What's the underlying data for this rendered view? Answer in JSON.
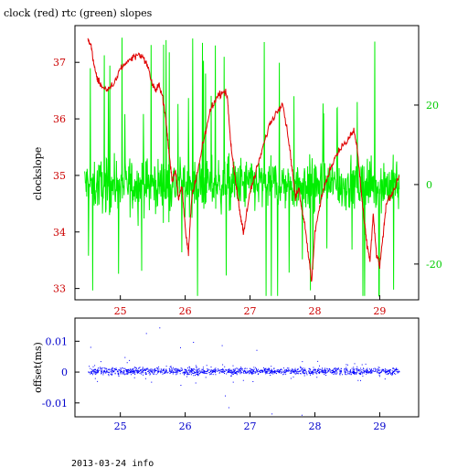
{
  "title": "clock (red) rtc (green) slopes",
  "footer": "2013-03-24 info",
  "colors": {
    "clock": "#e00000",
    "rtc": "#00ee00",
    "offset": "#0000ff",
    "axis": "#000000",
    "left_tick_top": "#cc0000",
    "right_tick_top": "#00cc00",
    "tick_bottom": "#0000cc",
    "x_tick_top": "#cc0000",
    "x_tick_bottom": "#0000cc"
  },
  "chart_data": [
    {
      "type": "line",
      "title": "clock (red) rtc (green) slopes",
      "ylabel": "clockslope",
      "xlim": [
        24.3,
        29.6
      ],
      "ylim": [
        32.8,
        37.65
      ],
      "y2lim": [
        -29,
        40
      ],
      "x_ticks": [
        25,
        26,
        27,
        28,
        29
      ],
      "y_ticks": [
        33,
        34,
        35,
        36,
        37
      ],
      "y2_ticks": [
        -20,
        0,
        20
      ],
      "y2_tick_labels": [
        "-20",
        "0",
        "20"
      ],
      "series": [
        {
          "axis": "left",
          "x": [
            24.5,
            24.55,
            24.6,
            24.65,
            24.7,
            24.8,
            24.9,
            25.0,
            25.1,
            25.2,
            25.3,
            25.4,
            25.5,
            25.55,
            25.6,
            25.65,
            25.7,
            25.75,
            25.8,
            25.85,
            25.9,
            25.95,
            26.0,
            26.05,
            26.1,
            26.2,
            26.3,
            26.4,
            26.5,
            26.6,
            26.65,
            26.7,
            26.75,
            26.8,
            26.85,
            26.9,
            27.0,
            27.1,
            27.2,
            27.3,
            27.4,
            27.5,
            27.6,
            27.65,
            27.7,
            27.75,
            27.8,
            27.85,
            27.9,
            27.95,
            28.0,
            28.1,
            28.2,
            28.3,
            28.4,
            28.5,
            28.6,
            28.65,
            28.7,
            28.75,
            28.8,
            28.85,
            28.9,
            28.95,
            29.0,
            29.05,
            29.1,
            29.2,
            29.3
          ],
          "y": [
            37.4,
            37.3,
            36.9,
            36.7,
            36.6,
            36.5,
            36.6,
            36.9,
            37.0,
            37.1,
            37.15,
            37.0,
            36.6,
            36.5,
            36.6,
            36.4,
            36.0,
            35.4,
            34.9,
            35.1,
            34.6,
            34.8,
            34.1,
            33.6,
            34.6,
            35.1,
            35.7,
            36.2,
            36.4,
            36.5,
            36.4,
            35.6,
            35.1,
            34.7,
            34.3,
            34.0,
            34.7,
            35.1,
            35.5,
            35.9,
            36.1,
            36.3,
            35.6,
            35.1,
            34.6,
            34.8,
            34.4,
            34.1,
            33.6,
            33.1,
            34.0,
            34.6,
            35.0,
            35.3,
            35.5,
            35.6,
            35.8,
            35.5,
            34.9,
            34.3,
            33.8,
            33.5,
            34.3,
            33.6,
            33.4,
            33.9,
            34.5,
            34.7,
            35.0
          ]
        },
        {
          "axis": "right",
          "x": [
            24.45,
            29.3
          ],
          "y_range": [
            -10,
            10
          ]
        }
      ]
    },
    {
      "type": "scatter",
      "ylabel": "offset(ms)",
      "xlim": [
        24.3,
        29.6
      ],
      "ylim": [
        -0.0145,
        0.0175
      ],
      "x_ticks": [
        25,
        26,
        27,
        28,
        29
      ],
      "y_ticks": [
        -0.01,
        0,
        0.01
      ],
      "y_tick_labels": [
        "-0.01",
        "0",
        "0.01"
      ],
      "x": [
        24.5,
        25.0,
        25.5,
        26.0,
        26.5,
        27.0,
        27.5,
        28.0,
        28.5,
        29.0,
        29.3
      ],
      "y": [
        0.0005,
        0.0,
        0.001,
        0.0005,
        0.0,
        0.0005,
        0.0005,
        0.0005,
        0.0,
        0.0005,
        0.0
      ]
    }
  ]
}
